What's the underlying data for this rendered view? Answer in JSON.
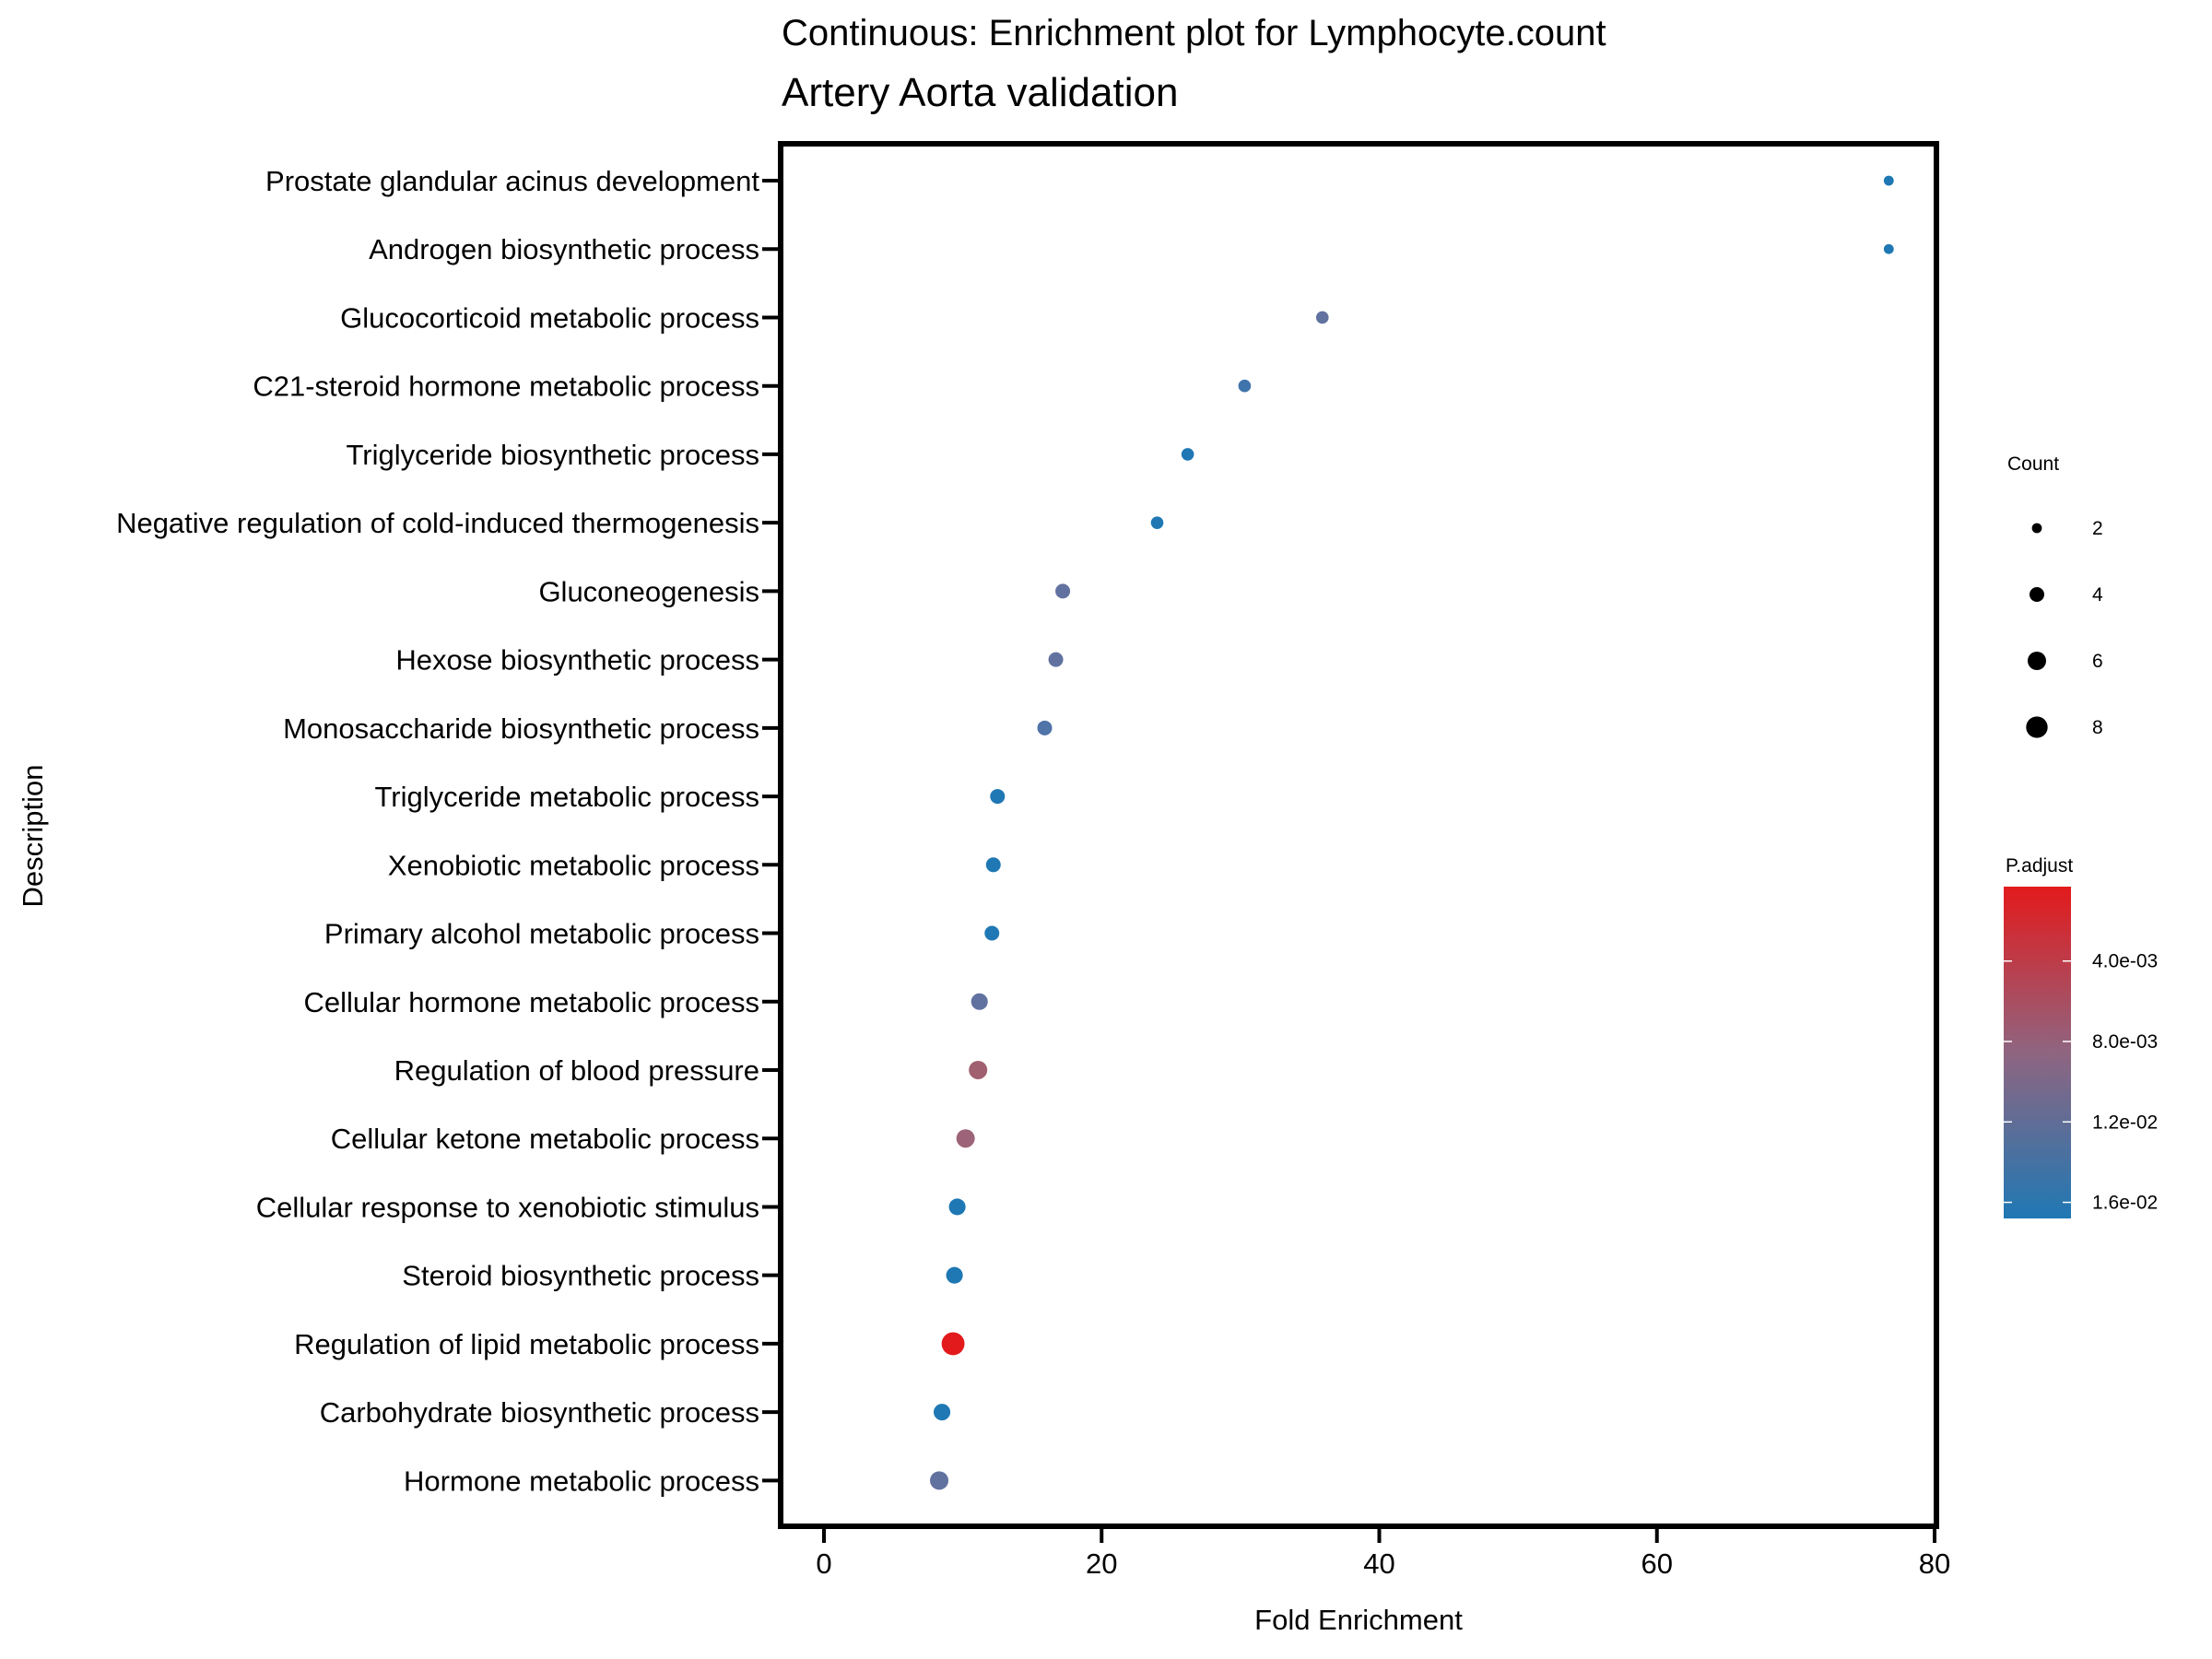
{
  "chart_data": {
    "type": "scatter",
    "title": "Continuous: Enrichment plot for Lymphocyte.count",
    "subtitle": "Artery Aorta validation",
    "xlabel": "Fold Enrichment",
    "ylabel": "Description",
    "xlim": [
      -3.5,
      80.5
    ],
    "x_ticks": [
      0,
      20,
      40,
      60,
      80
    ],
    "x_tick_labels": [
      "0",
      "20",
      "40",
      "60",
      "80"
    ],
    "grid": false,
    "points": [
      {
        "description": "Prostate glandular acinus development",
        "fold_enrichment": 76.7,
        "count": 2,
        "p_adjust": 0.0165,
        "color": "#1f78b4"
      },
      {
        "description": "Androgen biosynthetic process",
        "fold_enrichment": 76.7,
        "count": 2,
        "p_adjust": 0.0165,
        "color": "#1f78b4"
      },
      {
        "description": "Glucocorticoid metabolic process",
        "fold_enrichment": 35.9,
        "count": 3,
        "p_adjust": 0.0135,
        "color": "#6272a0"
      },
      {
        "description": "C21-steroid hormone metabolic process",
        "fold_enrichment": 30.3,
        "count": 3,
        "p_adjust": 0.0155,
        "color": "#3f74ac"
      },
      {
        "description": "Triglyceride biosynthetic process",
        "fold_enrichment": 26.2,
        "count": 3,
        "p_adjust": 0.0165,
        "color": "#1f78b4"
      },
      {
        "description": "Negative regulation of cold-induced thermogenesis",
        "fold_enrichment": 24.0,
        "count": 3,
        "p_adjust": 0.0165,
        "color": "#1f78b4"
      },
      {
        "description": "Gluconeogenesis",
        "fold_enrichment": 17.2,
        "count": 4,
        "p_adjust": 0.0135,
        "color": "#6272a0"
      },
      {
        "description": "Hexose biosynthetic process",
        "fold_enrichment": 16.7,
        "count": 4,
        "p_adjust": 0.0135,
        "color": "#6272a0"
      },
      {
        "description": "Monosaccharide biosynthetic process",
        "fold_enrichment": 15.9,
        "count": 4,
        "p_adjust": 0.0145,
        "color": "#5073a8"
      },
      {
        "description": "Triglyceride metabolic process",
        "fold_enrichment": 12.5,
        "count": 4,
        "p_adjust": 0.0165,
        "color": "#1f78b4"
      },
      {
        "description": "Xenobiotic metabolic process",
        "fold_enrichment": 12.2,
        "count": 4,
        "p_adjust": 0.0165,
        "color": "#1f78b4"
      },
      {
        "description": "Primary alcohol metabolic process",
        "fold_enrichment": 12.1,
        "count": 4,
        "p_adjust": 0.0165,
        "color": "#1f78b4"
      },
      {
        "description": "Cellular hormone metabolic process",
        "fold_enrichment": 11.2,
        "count": 5,
        "p_adjust": 0.0135,
        "color": "#6272a0"
      },
      {
        "description": "Regulation of blood pressure",
        "fold_enrichment": 11.1,
        "count": 6,
        "p_adjust": 0.0085,
        "color": "#a0606f"
      },
      {
        "description": "Cellular ketone metabolic process",
        "fold_enrichment": 10.2,
        "count": 6,
        "p_adjust": 0.0095,
        "color": "#9d6479"
      },
      {
        "description": "Cellular response to xenobiotic stimulus",
        "fold_enrichment": 9.6,
        "count": 5,
        "p_adjust": 0.0165,
        "color": "#1f78b4"
      },
      {
        "description": "Steroid biosynthetic process",
        "fold_enrichment": 9.4,
        "count": 5,
        "p_adjust": 0.0165,
        "color": "#1f78b4"
      },
      {
        "description": "Regulation of lipid metabolic process",
        "fold_enrichment": 9.3,
        "count": 9,
        "p_adjust": 0.0003,
        "color": "#e31a1c"
      },
      {
        "description": "Carbohydrate biosynthetic process",
        "fold_enrichment": 8.5,
        "count": 5,
        "p_adjust": 0.0165,
        "color": "#1f78b4"
      },
      {
        "description": "Hormone metabolic process",
        "fold_enrichment": 8.3,
        "count": 6,
        "p_adjust": 0.0135,
        "color": "#6272a0"
      }
    ],
    "size_legend": {
      "title": "Count",
      "position": "right",
      "entries": [
        {
          "label": "2",
          "value": 2
        },
        {
          "label": "4",
          "value": 4
        },
        {
          "label": "6",
          "value": 6
        },
        {
          "label": "8",
          "value": 8
        }
      ]
    },
    "color_legend": {
      "title": "P.adjust",
      "position": "right",
      "low_color": "#e31a1c",
      "high_color": "#1f78b4",
      "range": [
        0.0003,
        0.0168
      ],
      "ticks": [
        {
          "label": "4.0e-03",
          "value": 0.004
        },
        {
          "label": "8.0e-03",
          "value": 0.008
        },
        {
          "label": "1.2e-02",
          "value": 0.012
        },
        {
          "label": "1.6e-02",
          "value": 0.016
        }
      ]
    }
  }
}
